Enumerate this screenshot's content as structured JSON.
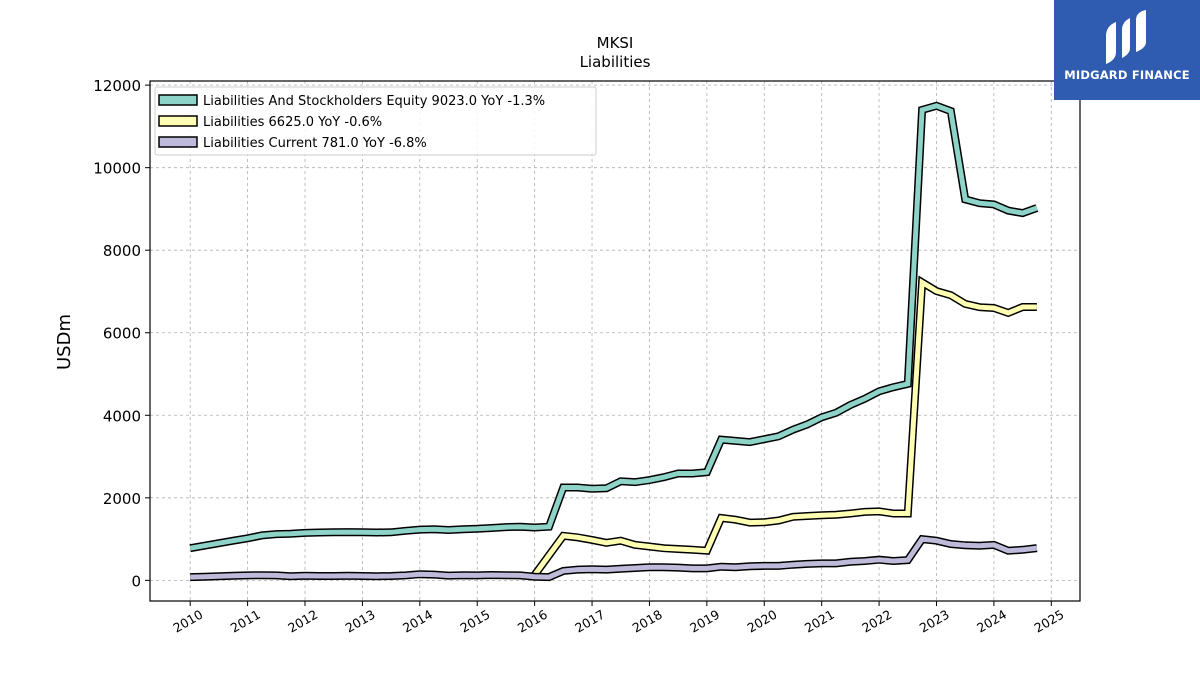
{
  "chart_data": {
    "type": "line",
    "title": "MKSI",
    "subtitle": "Liabilities",
    "xlabel": "",
    "ylabel": "USDm",
    "xlim": [
      2009.3,
      2025.5
    ],
    "ylim": [
      -500,
      12100
    ],
    "x_ticks": [
      "2010",
      "2011",
      "2012",
      "2013",
      "2014",
      "2015",
      "2016",
      "2017",
      "2018",
      "2019",
      "2020",
      "2021",
      "2022",
      "2023",
      "2024",
      "2025"
    ],
    "y_ticks": [
      "0",
      "2000",
      "4000",
      "6000",
      "8000",
      "10000",
      "12000"
    ],
    "grid": true,
    "legend_position": "top-left",
    "series": [
      {
        "name": "Liabilities And Stockholders Equity  9023.0 YoY -1.3%",
        "color": "#8dd3c7",
        "points": [
          [
            2010.0,
            780
          ],
          [
            2010.25,
            840
          ],
          [
            2010.5,
            900
          ],
          [
            2010.75,
            960
          ],
          [
            2011.0,
            1020
          ],
          [
            2011.25,
            1090
          ],
          [
            2011.5,
            1120
          ],
          [
            2011.75,
            1130
          ],
          [
            2012.0,
            1150
          ],
          [
            2012.25,
            1160
          ],
          [
            2012.5,
            1165
          ],
          [
            2012.75,
            1170
          ],
          [
            2013.0,
            1165
          ],
          [
            2013.25,
            1160
          ],
          [
            2013.5,
            1165
          ],
          [
            2013.75,
            1200
          ],
          [
            2014.0,
            1230
          ],
          [
            2014.25,
            1240
          ],
          [
            2014.5,
            1220
          ],
          [
            2014.75,
            1240
          ],
          [
            2015.0,
            1250
          ],
          [
            2015.25,
            1270
          ],
          [
            2015.5,
            1290
          ],
          [
            2015.75,
            1300
          ],
          [
            2016.0,
            1280
          ],
          [
            2016.25,
            1300
          ],
          [
            2016.5,
            2250
          ],
          [
            2016.75,
            2250
          ],
          [
            2017.0,
            2220
          ],
          [
            2017.25,
            2230
          ],
          [
            2017.5,
            2400
          ],
          [
            2017.75,
            2380
          ],
          [
            2018.0,
            2430
          ],
          [
            2018.25,
            2500
          ],
          [
            2018.5,
            2590
          ],
          [
            2018.75,
            2590
          ],
          [
            2019.0,
            2620
          ],
          [
            2019.25,
            3410
          ],
          [
            2019.5,
            3380
          ],
          [
            2019.75,
            3350
          ],
          [
            2020.0,
            3420
          ],
          [
            2020.25,
            3490
          ],
          [
            2020.5,
            3650
          ],
          [
            2020.75,
            3780
          ],
          [
            2021.0,
            3950
          ],
          [
            2021.25,
            4060
          ],
          [
            2021.5,
            4250
          ],
          [
            2021.75,
            4400
          ],
          [
            2022.0,
            4580
          ],
          [
            2022.25,
            4680
          ],
          [
            2022.5,
            4760
          ],
          [
            2022.75,
            11400
          ],
          [
            2023.0,
            11500
          ],
          [
            2023.25,
            11370
          ],
          [
            2023.5,
            9230
          ],
          [
            2023.75,
            9140
          ],
          [
            2024.0,
            9110
          ],
          [
            2024.25,
            8960
          ],
          [
            2024.5,
            8900
          ],
          [
            2024.75,
            9023
          ]
        ]
      },
      {
        "name": "Liabilities  6625.0 YoY -0.6%",
        "color": "#ffffb3",
        "points": [
          [
            2016.0,
            130
          ],
          [
            2016.5,
            1080
          ],
          [
            2016.75,
            1040
          ],
          [
            2017.0,
            980
          ],
          [
            2017.25,
            910
          ],
          [
            2017.5,
            960
          ],
          [
            2017.75,
            860
          ],
          [
            2018.0,
            820
          ],
          [
            2018.25,
            780
          ],
          [
            2018.5,
            760
          ],
          [
            2018.75,
            740
          ],
          [
            2019.0,
            720
          ],
          [
            2019.25,
            1510
          ],
          [
            2019.5,
            1470
          ],
          [
            2019.75,
            1400
          ],
          [
            2020.0,
            1410
          ],
          [
            2020.25,
            1450
          ],
          [
            2020.5,
            1540
          ],
          [
            2020.75,
            1560
          ],
          [
            2021.0,
            1580
          ],
          [
            2021.25,
            1590
          ],
          [
            2021.5,
            1620
          ],
          [
            2021.75,
            1660
          ],
          [
            2022.0,
            1670
          ],
          [
            2022.25,
            1620
          ],
          [
            2022.5,
            1620
          ],
          [
            2022.75,
            7220
          ],
          [
            2023.0,
            7010
          ],
          [
            2023.25,
            6910
          ],
          [
            2023.5,
            6700
          ],
          [
            2023.75,
            6620
          ],
          [
            2024.0,
            6600
          ],
          [
            2024.25,
            6480
          ],
          [
            2024.5,
            6625
          ],
          [
            2024.75,
            6625
          ]
        ]
      },
      {
        "name": "Liabilities Current  781.0 YoY -6.8%",
        "color": "#bebada",
        "points": [
          [
            2010.0,
            80
          ],
          [
            2010.25,
            90
          ],
          [
            2010.5,
            100
          ],
          [
            2010.75,
            110
          ],
          [
            2011.0,
            120
          ],
          [
            2011.25,
            125
          ],
          [
            2011.5,
            120
          ],
          [
            2011.75,
            100
          ],
          [
            2012.0,
            110
          ],
          [
            2012.25,
            105
          ],
          [
            2012.5,
            105
          ],
          [
            2012.75,
            110
          ],
          [
            2013.0,
            105
          ],
          [
            2013.25,
            100
          ],
          [
            2013.5,
            105
          ],
          [
            2013.75,
            120
          ],
          [
            2014.0,
            150
          ],
          [
            2014.25,
            140
          ],
          [
            2014.5,
            115
          ],
          [
            2014.75,
            125
          ],
          [
            2015.0,
            120
          ],
          [
            2015.25,
            130
          ],
          [
            2015.5,
            125
          ],
          [
            2015.75,
            120
          ],
          [
            2016.0,
            90
          ],
          [
            2016.25,
            80
          ],
          [
            2016.5,
            230
          ],
          [
            2016.75,
            260
          ],
          [
            2017.0,
            270
          ],
          [
            2017.25,
            260
          ],
          [
            2017.5,
            280
          ],
          [
            2017.75,
            300
          ],
          [
            2018.0,
            320
          ],
          [
            2018.25,
            320
          ],
          [
            2018.5,
            310
          ],
          [
            2018.75,
            290
          ],
          [
            2019.0,
            290
          ],
          [
            2019.25,
            330
          ],
          [
            2019.5,
            320
          ],
          [
            2019.75,
            340
          ],
          [
            2020.0,
            350
          ],
          [
            2020.25,
            350
          ],
          [
            2020.5,
            380
          ],
          [
            2020.75,
            400
          ],
          [
            2021.0,
            410
          ],
          [
            2021.25,
            410
          ],
          [
            2021.5,
            450
          ],
          [
            2021.75,
            470
          ],
          [
            2022.0,
            500
          ],
          [
            2022.25,
            470
          ],
          [
            2022.5,
            490
          ],
          [
            2022.75,
            1000
          ],
          [
            2023.0,
            960
          ],
          [
            2023.25,
            880
          ],
          [
            2023.5,
            850
          ],
          [
            2023.75,
            840
          ],
          [
            2024.0,
            860
          ],
          [
            2024.25,
            720
          ],
          [
            2024.5,
            740
          ],
          [
            2024.75,
            781
          ]
        ]
      }
    ]
  },
  "logo": {
    "text": "MIDGARD FINANCE"
  }
}
